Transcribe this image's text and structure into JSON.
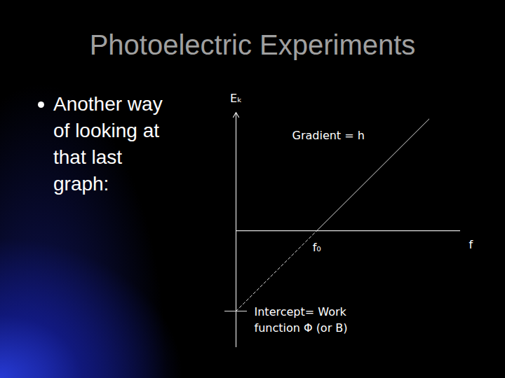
{
  "title": "Photoelectric Experiments",
  "bullet": "Another way of looking at that last graph:",
  "chart_data": {
    "type": "line",
    "x_label": "f",
    "y_label": "Eₖ",
    "annotations": [
      "Gradient = h",
      "f₀",
      "Intercept= Work\nfunction Φ (or B)"
    ],
    "xlim": [
      0,
      10
    ],
    "ylim": [
      -5.2,
      5.3
    ],
    "xticks": [],
    "yticks": [
      -3.6
    ],
    "tick_labels": false,
    "grid": false,
    "series": [
      {
        "x": [
          0,
          3.6
        ],
        "values": [
          -3.6,
          0
        ],
        "color": "#d9d9d9",
        "line_style": "dashed"
      },
      {
        "x": [
          3.6,
          8.6
        ],
        "values": [
          0,
          5
        ],
        "color": "#d9d9d9",
        "line_style": "solid"
      }
    ]
  }
}
